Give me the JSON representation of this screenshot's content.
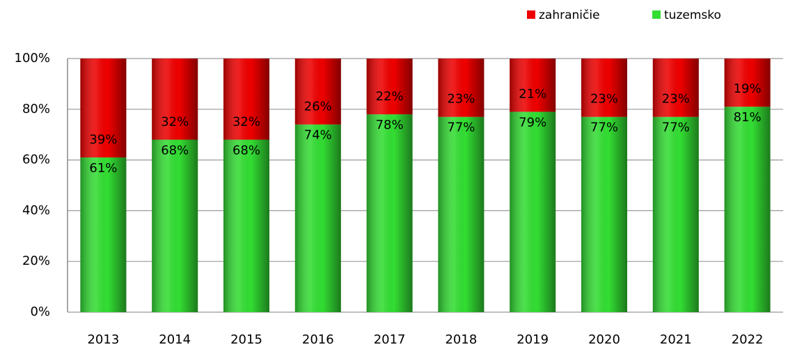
{
  "chart_data": {
    "type": "stacked_bar",
    "categories": [
      "2013",
      "2014",
      "2015",
      "2016",
      "2017",
      "2018",
      "2019",
      "2020",
      "2021",
      "2022"
    ],
    "series": [
      {
        "name": "tuzemsko",
        "color": "#33dd33",
        "values": [
          61,
          68,
          68,
          74,
          78,
          77,
          79,
          77,
          77,
          81
        ],
        "value_labels": [
          "61%",
          "68%",
          "68%",
          "74%",
          "78%",
          "77%",
          "79%",
          "77%",
          "77%",
          "81%"
        ]
      },
      {
        "name": "zahraničie",
        "color": "#ee0000",
        "values": [
          39,
          32,
          32,
          26,
          22,
          23,
          21,
          23,
          23,
          19
        ],
        "value_labels": [
          "39%",
          "32%",
          "32%",
          "26%",
          "22%",
          "23%",
          "21%",
          "23%",
          "23%",
          "19%"
        ]
      }
    ],
    "ylim": [
      0,
      100
    ],
    "yticks": [
      {
        "value": 0,
        "label": "0%"
      },
      {
        "value": 20,
        "label": "20%"
      },
      {
        "value": 40,
        "label": "40%"
      },
      {
        "value": 60,
        "label": "60%"
      },
      {
        "value": 80,
        "label": "80%"
      },
      {
        "value": 100,
        "label": "100%"
      }
    ],
    "grid": true,
    "legend": "top-right"
  }
}
